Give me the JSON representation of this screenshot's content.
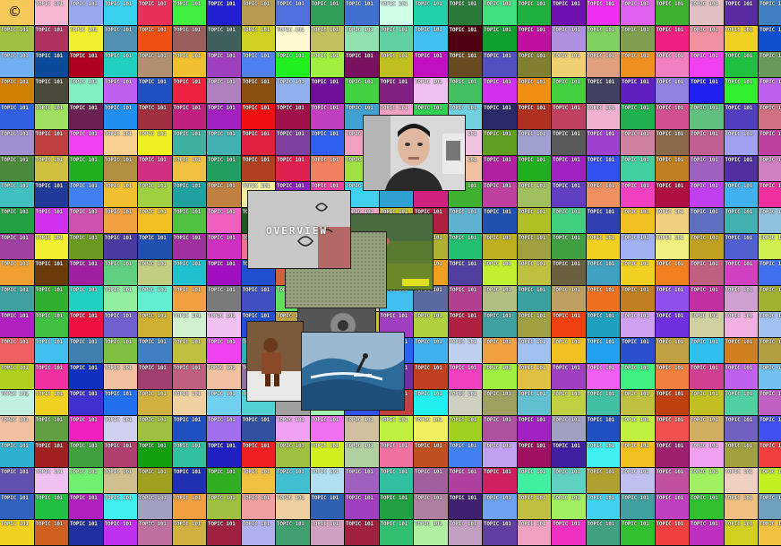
{
  "copyright_symbol": "©",
  "tile_label": "TOPIC 101",
  "overview_label": "OVERVIEW",
  "grid": {
    "columns": 23,
    "rows": 21,
    "colors": [
      "#f5c85a",
      "#f7b6d2",
      "#9aa8f0",
      "#3ad0f0",
      "#e8305a",
      "#40f040",
      "#2020d0",
      "#b89a50",
      "#5070e0",
      "#2f9f5a",
      "#4070d0",
      "#d0ffe8",
      "#20d0a8",
      "#2a7a3a",
      "#40e080",
      "#20b040",
      "#7010b0",
      "#f030f0",
      "#e060f0",
      "#40b030",
      "#e0c0c0",
      "#5a2aa0",
      "#4080c0",
      "#a0c040",
      "#b03060",
      "#f0f030",
      "#5090b0",
      "#f05010",
      "#9a6060",
      "#406060",
      "#d0d020",
      "#fff8d0",
      "#c0c060",
      "#90e0b0",
      "#60d0a0",
      "#40c0f0",
      "#500010",
      "#10a030",
      "#c010a0",
      "#b090e0",
      "#80d060",
      "#80a050",
      "#f02080",
      "#f090a0",
      "#f0d020",
      "#1050d0",
      "#70b0f0",
      "#0a4a9a",
      "#b00020",
      "#20d0c0",
      "#b09070",
      "#f0c030",
      "#a040c0",
      "#5080f0",
      "#20f020",
      "#a0f040",
      "#7a1060",
      "#c0c020",
      "#c010c0",
      "#6a4a20",
      "#5050c0",
      "#808030",
      "#f0d070",
      "#e0a080",
      "#f09020",
      "#f080c0",
      "#f040f0",
      "#20c040",
      "#6a9a5a",
      "#d08000",
      "#4a4a3a",
      "#80f0c0",
      "#c060f0",
      "#2050c0",
      "#f02040",
      "#b080c0",
      "#8a5010",
      "#90b0f0",
      "#70109a",
      "#40d040",
      "#802080",
      "#f0c0f0",
      "#40c060",
      "#d030f0",
      "#f09010",
      "#40d040",
      "#404060",
      "#6020c0",
      "#9080e0",
      "#2020f0",
      "#30f030",
      "#c060f0",
      "#3060e0",
      "#a0e060",
      "#6a2050",
      "#2090f0",
      "#a03040",
      "#c02080",
      "#a020c0",
      "#f01010",
      "#a0104a",
      "#c040c0",
      "#40a0d0",
      "#f0a0c0",
      "#30d050",
      "#70d0e0",
      "#2a2a6a",
      "#b03020",
      "#c04060",
      "#f0b0d0",
      "#20b050",
      "#d05090",
      "#60c080",
      "#5040c0",
      "#d07080",
      "#a090d0",
      "#c04040",
      "#f040f0",
      "#f8d090",
      "#f0f020",
      "#40b0a0",
      "#40b0b0",
      "#e02040",
      "#8040a0",
      "#3060f0",
      "#f0a0c0",
      "#7a7a30",
      "#20c0c0",
      "#f0c0e0",
      "#60a020",
      "#a0a0d0",
      "#5a5a5a",
      "#a040d0",
      "#d080a0",
      "#8a6a4a",
      "#c06090",
      "#a0a0f0",
      "#c040a0",
      "#4a8a3a",
      "#d0c040",
      "#20b020",
      "#b09040",
      "#d03080",
      "#f0c040",
      "#20a060",
      "#b04020",
      "#e02050",
      "#f08060",
      "#a0e040",
      "#804080",
      "#c0b0f0",
      "#f0c0a0",
      "#b020a0",
      "#20b020",
      "#a020c0",
      "#3050f0",
      "#40d0a0",
      "#c08020",
      "#a060c0",
      "#5030a0",
      "#d080c0",
      "#40c0c0",
      "#203a9a",
      "#4080f0",
      "#f0c030",
      "#a0d040",
      "#20a0a0",
      "#c08040",
      "#f0f0a0",
      "#9020c0",
      "#f040a0",
      "#40d0f0",
      "#30a0d0",
      "#d02080",
      "#40b030",
      "#c040a0",
      "#a0c060",
      "#6040c0",
      "#f09060",
      "#f040c0",
      "#b01040",
      "#c040f0",
      "#40b0f0",
      "#f030a0",
      "#20a040",
      "#d030f0",
      "#d050b0",
      "#f0a040",
      "#f0c020",
      "#50c040",
      "#f060c0",
      "#205a20",
      "#40c0c0",
      "#f070a0",
      "#f0a0c0",
      "#c0c020",
      "#b02040",
      "#60b0d0",
      "#2050b0",
      "#b0c020",
      "#40d080",
      "#3040b0",
      "#f0c020",
      "#f0d080",
      "#6070c0",
      "#40b0b0",
      "#90c0e0",
      "#a040a0",
      "#f0f030",
      "#6a9a20",
      "#4a3aa0",
      "#2050b0",
      "#a030a0",
      "#d030c0",
      "#f07090",
      "#50d040",
      "#e02080",
      "#c0c0f0",
      "#f040c0",
      "#b0b030",
      "#20c070",
      "#c0b020",
      "#a0a040",
      "#40a040",
      "#f0d020",
      "#a0b0f0",
      "#f0f080",
      "#c0a020",
      "#5060d0",
      "#d0f050",
      "#f0a030",
      "#6a3a0a",
      "#a020a0",
      "#60d080",
      "#c0d080",
      "#20c0d0",
      "#a010c0",
      "#2050d0",
      "#d06040",
      "#c040e0",
      "#f09040",
      "#9090c0",
      "#f0a020",
      "#5040a0",
      "#c0f030",
      "#c0c040",
      "#6a6040",
      "#40a0c0",
      "#f0d020",
      "#f08020",
      "#c06080",
      "#d040c0",
      "#4070f0",
      "#40a0a0",
      "#30b030",
      "#20d0c0",
      "#90f0a0",
      "#60f0d0",
      "#f0a040",
      "#7a7a7a",
      "#4050c0",
      "#60e060",
      "#f030a0",
      "#f0c0a0",
      "#40c0f0",
      "#5a6aa0",
      "#b04090",
      "#b0c080",
      "#3aa0a0",
      "#c0a060",
      "#f07020",
      "#c08020",
      "#9050f0",
      "#c030a0",
      "#d0a0d0",
      "#a0b030",
      "#b020c0",
      "#40c040",
      "#f01040",
      "#7060d0",
      "#d0b030",
      "#d0f0d0",
      "#f0c0f0",
      "#2050d0",
      "#c0a040",
      "#f0c0a0",
      "#d0c040",
      "#a040c0",
      "#b0d040",
      "#b02040",
      "#40a0a0",
      "#a0a040",
      "#f04010",
      "#20a0c0",
      "#d0a0f0",
      "#7030e0",
      "#d0d0a0",
      "#f0b0e0",
      "#a0c0f0",
      "#f06060",
      "#40c0f0",
      "#4080b0",
      "#80c040",
      "#4080c0",
      "#c0c040",
      "#f040f0",
      "#30b0b0",
      "#b07020",
      "#c0d0f0",
      "#2040c0",
      "#3060f0",
      "#40b0f0",
      "#c0d0f0",
      "#f0a040",
      "#a0c0f0",
      "#f0c020",
      "#20a0f0",
      "#2a50d0",
      "#c0a040",
      "#30c0f0",
      "#d08020",
      "#b0a040",
      "#b0d020",
      "#f030a0",
      "#1030c0",
      "#f0c0a0",
      "#a04070",
      "#c06080",
      "#f0c0a0",
      "#9070a0",
      "#6040a0",
      "#30a0c0",
      "#d04090",
      "#7030a0",
      "#c04020",
      "#f040c0",
      "#a0f040",
      "#e0c040",
      "#a040c0",
      "#f060f0",
      "#40f080",
      "#f08040",
      "#d04090",
      "#c060f0",
      "#70c0f0",
      "#c0f0e0",
      "#f0d020",
      "#4030d0",
      "#2070f0",
      "#d0b040",
      "#f0d0a0",
      "#70d0f0",
      "#50d0d0",
      "#a0a0a0",
      "#a0f0b0",
      "#3050f0",
      "#c04040",
      "#20f0f0",
      "#d0d0c0",
      "#a0a060",
      "#60c0d0",
      "#c0d040",
      "#40c0a0",
      "#c0c040",
      "#c04010",
      "#c0c020",
      "#50d0a0",
      "#c060c0",
      "#f0c0a0",
      "#60a040",
      "#f020c0",
      "#d0d0f0",
      "#a0c040",
      "#2050c0",
      "#a070f0",
      "#3050a0",
      "#f0a0f0",
      "#f070f0",
      "#d0c0a0",
      "#c0f040",
      "#f0f060",
      "#a0d020",
      "#b050a0",
      "#a020c0",
      "#a0a0c0",
      "#2050c0",
      "#c0f040",
      "#f05050",
      "#d0b060",
      "#7060c0",
      "#4050f0",
      "#30b0d0",
      "#a02020",
      "#40a040",
      "#b04070",
      "#10a010",
      "#30c0a0",
      "#2020c0",
      "#f02020",
      "#a0c040",
      "#d0f020",
      "#b0d0a0",
      "#f070a0",
      "#c05020",
      "#4080f0",
      "#c0a0f0",
      "#a01060",
      "#4020a0",
      "#40f0f0",
      "#f0c020",
      "#a02070",
      "#f0a0f0",
      "#a0a040",
      "#f04040",
      "#6050b0",
      "#f0c0f0",
      "#70f070",
      "#d0c090",
      "#a0a020",
      "#2030b0",
      "#30b020",
      "#f0c040",
      "#40c0d0",
      "#b0e0f0",
      "#a060c0",
      "#30c0a0",
      "#a060a0",
      "#b040a0",
      "#d02060",
      "#40f0a0",
      "#60d0c0",
      "#b0a030",
      "#c0c0f0",
      "#c050a0",
      "#a0f060",
      "#f0d0c0",
      "#c0f020",
      "#3060c0",
      "#20c040",
      "#b020c0",
      "#40f0f0",
      "#a0a0c0",
      "#f0a040",
      "#a0c040",
      "#f0a0a0",
      "#f0d0a0",
      "#3060b0",
      "#a040c0",
      "#20a040",
      "#b080a0",
      "#402070",
      "#70a0f0",
      "#c0c040",
      "#a0f060",
      "#40d0f0",
      "#40a0a0",
      "#c040c0",
      "#30c030",
      "#f0c080",
      "#70a0c0",
      "#f0d020",
      "#d06020",
      "#2030a0",
      "#c030f0",
      "#c070a0",
      "#d0b040",
      "#a02040",
      "#b0b0f0",
      "#40a070",
      "#d0a0c0",
      "#a02040",
      "#30c070",
      "#b0f0a0",
      "#c0a0c0",
      "#6040a0",
      "#f0a0c0",
      "#f030c0",
      "#40a080",
      "#30c030",
      "#f04040",
      "#c030c0",
      "#d0d020",
      "#f0c040",
      "#3050c0"
    ]
  }
}
